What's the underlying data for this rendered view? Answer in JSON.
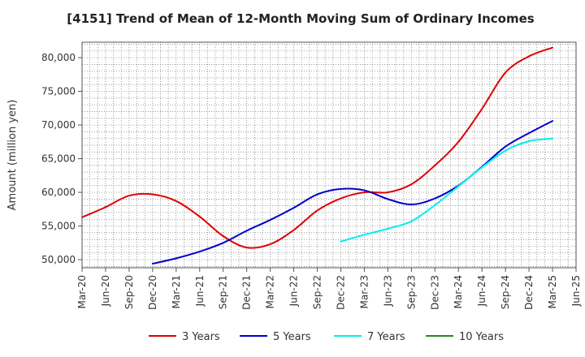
{
  "chart_data": {
    "type": "line",
    "title": "[4151]  Trend of Mean of 12-Month Moving Sum of Ordinary Incomes",
    "xlabel": "",
    "ylabel": "Amount (million yen)",
    "ylim": [
      48800,
      82300
    ],
    "yticks": [
      50000,
      55000,
      60000,
      65000,
      70000,
      75000,
      80000
    ],
    "ytick_labels": [
      "50,000",
      "55,000",
      "60,000",
      "65,000",
      "70,000",
      "75,000",
      "80,000"
    ],
    "x_start": "Mar-20",
    "x_months": 63,
    "xtick_labels": [
      "Mar-20",
      "Jun-20",
      "Sep-20",
      "Dec-20",
      "Mar-21",
      "Jun-21",
      "Sep-21",
      "Dec-21",
      "Mar-22",
      "Jun-22",
      "Sep-22",
      "Dec-22",
      "Mar-23",
      "Jun-23",
      "Sep-23",
      "Dec-23",
      "Mar-24",
      "Jun-24",
      "Sep-24",
      "Dec-24",
      "Mar-25",
      "Jun-25"
    ],
    "grid": true,
    "legend_position": "bottom",
    "series": [
      {
        "name": "3 Years",
        "color": "#dd0000",
        "x": [
          0,
          3,
          6,
          9,
          12,
          15,
          18,
          21,
          24,
          27,
          30,
          33,
          36,
          39,
          42,
          45,
          48,
          51,
          54,
          57,
          60
        ],
        "values": [
          56300,
          57800,
          59500,
          59700,
          58700,
          56400,
          53500,
          51800,
          52300,
          54400,
          57300,
          59100,
          60000,
          60000,
          61200,
          64000,
          67500,
          72400,
          77800,
          80200,
          81500
        ]
      },
      {
        "name": "5 Years",
        "color": "#0000cc",
        "x": [
          9,
          12,
          15,
          18,
          21,
          24,
          27,
          30,
          33,
          36,
          39,
          42,
          45,
          48,
          51,
          54,
          57,
          60
        ],
        "values": [
          49400,
          50200,
          51200,
          52500,
          54300,
          55900,
          57700,
          59700,
          60500,
          60300,
          59000,
          58200,
          59100,
          61000,
          63800,
          66800,
          68800,
          70600
        ]
      },
      {
        "name": "7 Years",
        "color": "#00eeee",
        "x": [
          33,
          36,
          39,
          42,
          45,
          48,
          51,
          54,
          57,
          60
        ],
        "values": [
          52700,
          53700,
          54600,
          55700,
          58100,
          60900,
          63700,
          66200,
          67600,
          68000
        ]
      },
      {
        "name": "10 Years",
        "color": "#228822",
        "x": [],
        "values": []
      }
    ]
  }
}
